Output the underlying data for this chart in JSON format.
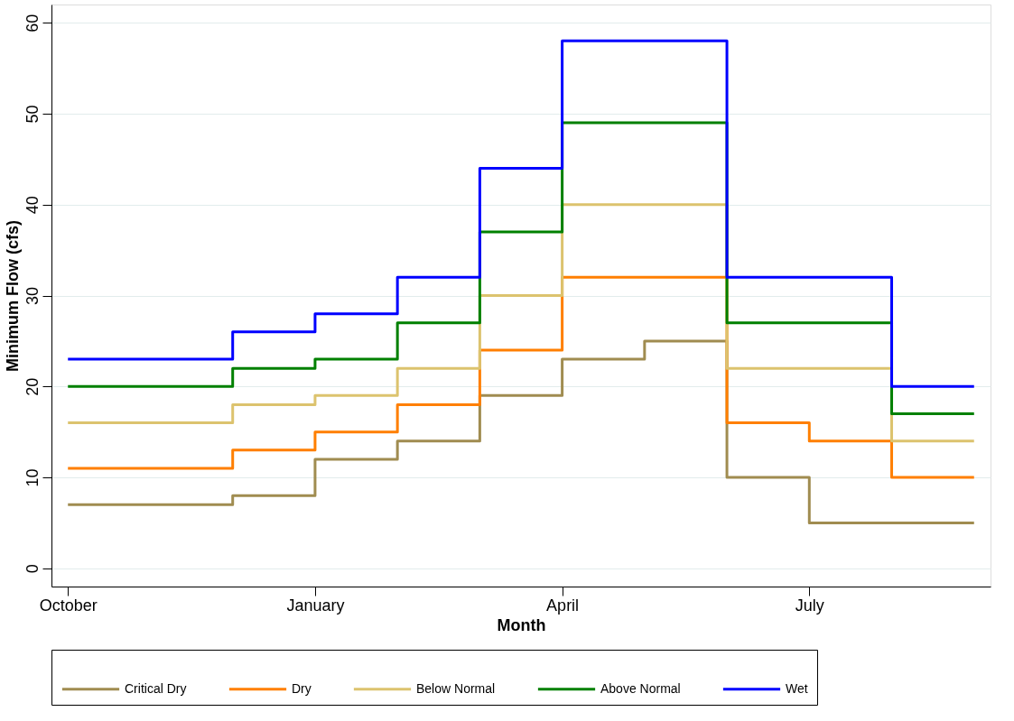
{
  "chart_data": {
    "type": "step",
    "xlabel": "Month",
    "ylabel": "Minimum Flow (cfs)",
    "categories": [
      "October",
      null,
      null,
      "January",
      null,
      null,
      "April",
      null,
      null,
      "July",
      null,
      null
    ],
    "ylim": [
      -2,
      62
    ],
    "yticks": [
      0,
      10,
      20,
      30,
      40,
      50,
      60
    ],
    "grid": "y",
    "legend": "bottom",
    "series": [
      {
        "name": "Critical Dry",
        "color": "#a08c50",
        "values": [
          7,
          7,
          8,
          12,
          14,
          19,
          23,
          25,
          10,
          5,
          5,
          5
        ]
      },
      {
        "name": "Dry",
        "color": "#ff7f00",
        "values": [
          11,
          11,
          13,
          15,
          18,
          24,
          32,
          32,
          16,
          14,
          10,
          10
        ]
      },
      {
        "name": "Below Normal",
        "color": "#dcc36e",
        "values": [
          16,
          16,
          18,
          19,
          22,
          30,
          40,
          40,
          22,
          22,
          14,
          14
        ]
      },
      {
        "name": "Above Normal",
        "color": "#008000",
        "values": [
          20,
          20,
          22,
          23,
          27,
          37,
          49,
          49,
          27,
          27,
          17,
          17
        ]
      },
      {
        "name": "Wet",
        "color": "#0000ff",
        "values": [
          23,
          23,
          26,
          28,
          32,
          44,
          58,
          58,
          32,
          32,
          20,
          20
        ]
      }
    ]
  }
}
